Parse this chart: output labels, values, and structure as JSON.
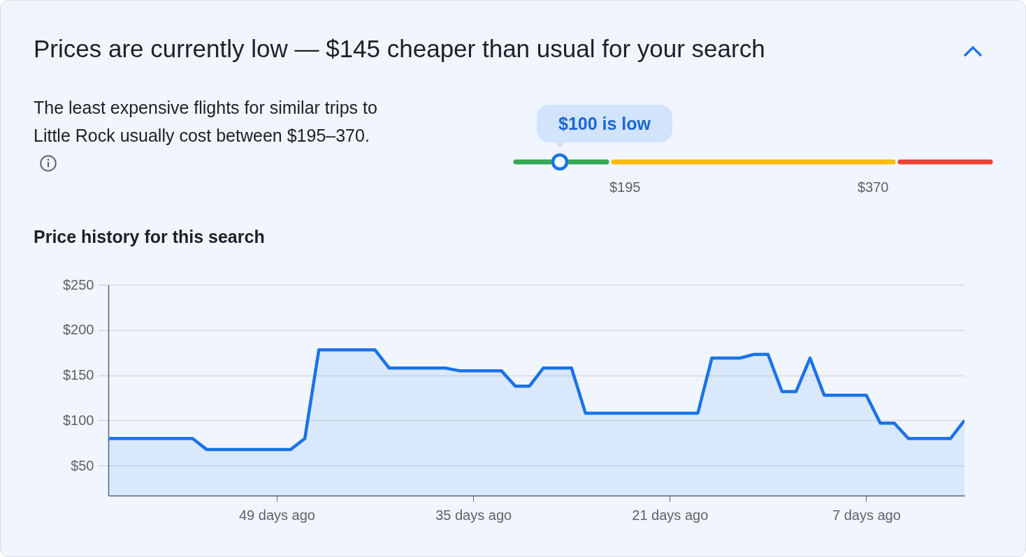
{
  "chart_data": [
    {
      "type": "other",
      "title": "Prices are currently low — $145 cheaper than usual for your search",
      "subtitle": "The least expensive flights for similar trips to Little Rock usually cost between $195–370.",
      "annotations": [
        "$100 is low",
        "$195",
        "$370"
      ]
    },
    {
      "type": "area",
      "title": "Price history for this search",
      "x": [
        61,
        55,
        54,
        48,
        47,
        46,
        42,
        41,
        37,
        36,
        33,
        32,
        31,
        30,
        28,
        27,
        19,
        18,
        16,
        15,
        14,
        13,
        12,
        11,
        10,
        7,
        6,
        5,
        4,
        1,
        0
      ],
      "series": [
        {
          "color": "#1a73e8",
          "values": [
            80,
            80,
            68,
            68,
            80,
            178,
            178,
            158,
            158,
            155,
            155,
            138,
            138,
            158,
            158,
            108,
            108,
            169,
            169,
            173,
            173,
            132,
            132,
            169,
            128,
            128,
            97,
            97,
            80,
            80,
            100
          ]
        }
      ],
      "xlim": [
        61,
        0
      ],
      "ylim": [
        17,
        250
      ],
      "xticks": [
        {
          "value": 49,
          "label": "49 days ago"
        },
        {
          "value": 35,
          "label": "35 days ago"
        },
        {
          "value": 21,
          "label": "21 days ago"
        },
        {
          "value": 7,
          "label": "7 days ago"
        }
      ],
      "yticks": [
        {
          "value": 50,
          "label": "$50"
        },
        {
          "value": 100,
          "label": "$100"
        },
        {
          "value": 150,
          "label": "$150"
        },
        {
          "value": 200,
          "label": "$200"
        },
        {
          "value": 250,
          "label": "$250"
        }
      ],
      "grid": "y"
    }
  ]
}
